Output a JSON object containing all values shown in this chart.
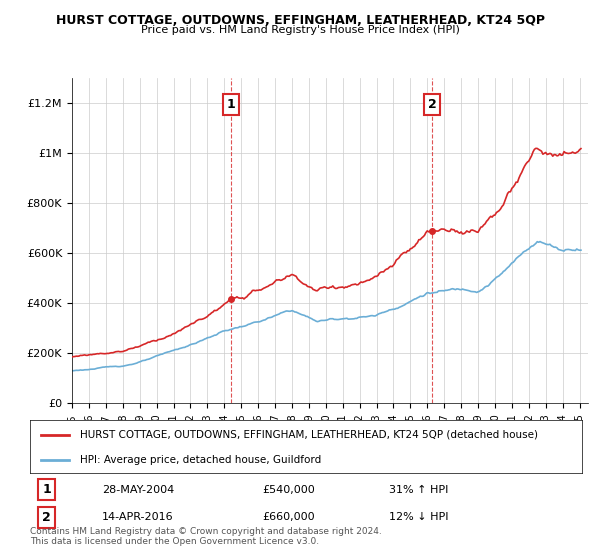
{
  "title": "HURST COTTAGE, OUTDOWNS, EFFINGHAM, LEATHERHEAD, KT24 5QP",
  "subtitle": "Price paid vs. HM Land Registry's House Price Index (HPI)",
  "ylabel_ticks": [
    "£0",
    "£200K",
    "£400K",
    "£600K",
    "£800K",
    "£1M",
    "£1.2M"
  ],
  "ytick_values": [
    0,
    200000,
    400000,
    600000,
    800000,
    1000000,
    1200000
  ],
  "ylim": [
    0,
    1300000
  ],
  "xlim_start": 1995.0,
  "xlim_end": 2025.5,
  "sale1_x": 2004.41,
  "sale1_y": 540000,
  "sale1_label": "1",
  "sale1_date": "28-MAY-2004",
  "sale1_price": "£540,000",
  "sale1_hpi": "31% ↑ HPI",
  "sale2_x": 2016.28,
  "sale2_y": 660000,
  "sale2_label": "2",
  "sale2_date": "14-APR-2016",
  "sale2_price": "£660,000",
  "sale2_hpi": "12% ↓ HPI",
  "hpi_color": "#6baed6",
  "price_color": "#d62728",
  "vline_color": "#d62728",
  "legend_label_price": "HURST COTTAGE, OUTDOWNS, EFFINGHAM, LEATHERHEAD, KT24 5QP (detached house)",
  "legend_label_hpi": "HPI: Average price, detached house, Guildford",
  "footer": "Contains HM Land Registry data © Crown copyright and database right 2024.\nThis data is licensed under the Open Government Licence v3.0.",
  "background_color": "#ffffff",
  "plot_bg_color": "#ffffff",
  "grid_color": "#cccccc"
}
